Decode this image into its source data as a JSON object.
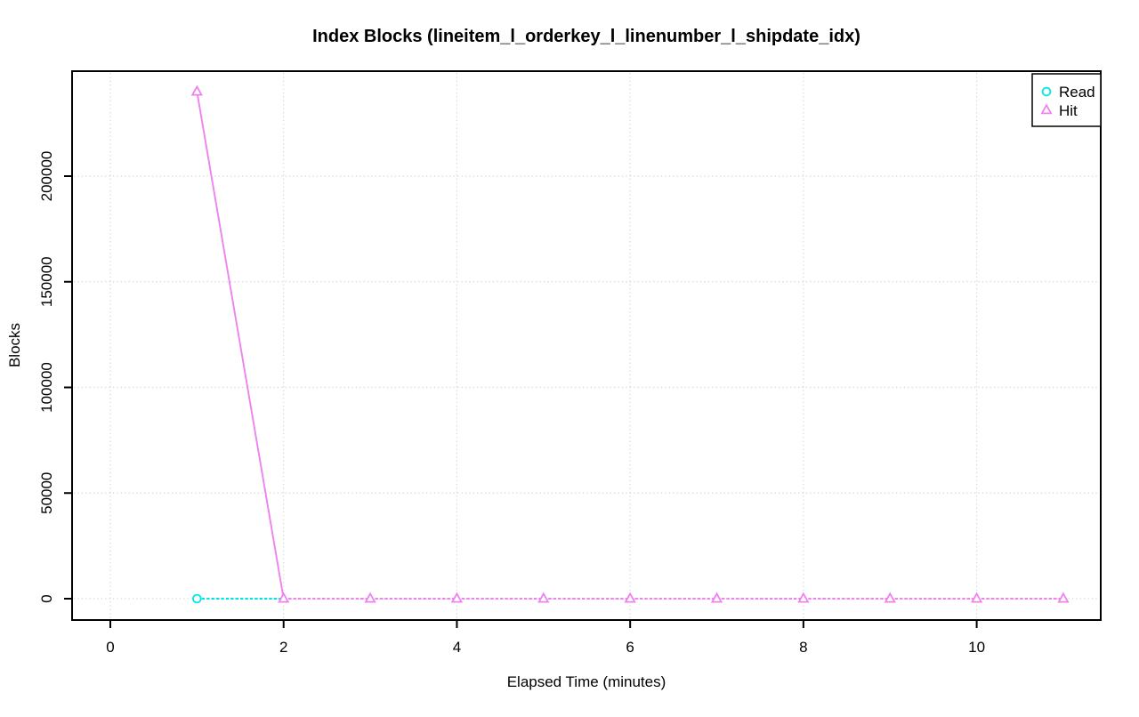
{
  "chart_data": {
    "type": "line",
    "title": "Index Blocks (lineitem_l_orderkey_l_linenumber_l_shipdate_idx)",
    "xlabel": "Elapsed Time (minutes)",
    "ylabel": "Blocks",
    "x_ticks": [
      0,
      2,
      4,
      6,
      8,
      10
    ],
    "y_ticks": [
      0,
      50000,
      100000,
      150000,
      200000
    ],
    "xlim": [
      -0.45,
      11.45
    ],
    "ylim": [
      -10000,
      250000
    ],
    "grid": {
      "style": "dotted",
      "color": "#d3d3d3"
    },
    "legend": {
      "position": "top-right"
    },
    "colors": {
      "read": "#00e6e6",
      "hit": "#ee82ee",
      "axis": "#000000"
    },
    "series": [
      {
        "name": "Read",
        "color": "#00e6e6",
        "marker": "circle",
        "x": [
          1,
          2
        ],
        "y": [
          0,
          0
        ],
        "marker_x": [
          1
        ],
        "marker_y": [
          0
        ]
      },
      {
        "name": "Hit",
        "color": "#ee82ee",
        "marker": "triangle",
        "x": [
          1,
          2,
          3,
          4,
          5,
          6,
          7,
          8,
          9,
          10,
          11
        ],
        "y": [
          240000,
          0,
          0,
          0,
          0,
          0,
          0,
          0,
          0,
          0,
          0
        ],
        "marker_x": [
          1,
          2,
          3,
          4,
          5,
          6,
          7,
          8,
          9,
          10,
          11
        ],
        "marker_y": [
          240000,
          0,
          0,
          0,
          0,
          0,
          0,
          0,
          0,
          0,
          0
        ]
      }
    ]
  }
}
